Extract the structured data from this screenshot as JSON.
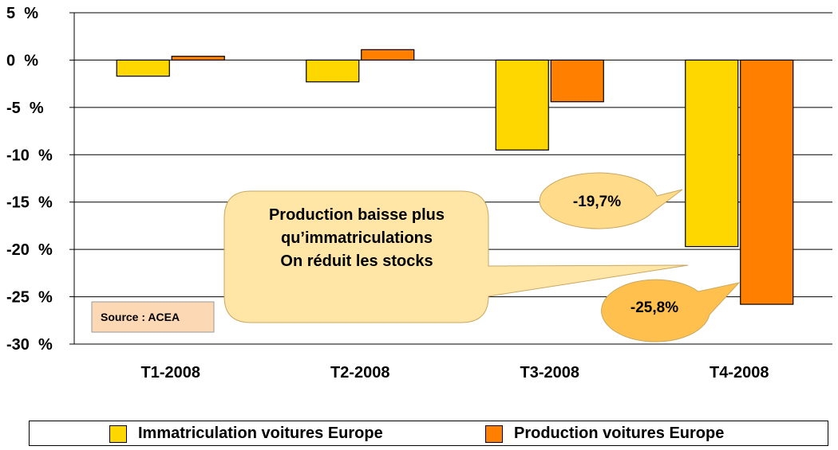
{
  "chart_data": {
    "type": "bar",
    "categories": [
      "T1-2008",
      "T2-2008",
      "T3-2008",
      "T4-2008"
    ],
    "series": [
      {
        "name": "Immatriculation voitures Europe",
        "color": "#FFD700",
        "values": [
          -1.7,
          -2.3,
          -9.5,
          -19.7
        ]
      },
      {
        "name": "Production voitures Europe",
        "color": "#FF8000",
        "values": [
          0.4,
          1.1,
          -4.4,
          -25.8
        ]
      }
    ],
    "ylim": [
      -30,
      5
    ],
    "yticks": [
      5,
      0,
      -5,
      -10,
      -15,
      -20,
      -25,
      -30
    ],
    "ytick_labels": [
      "5  %",
      "0  %",
      "-5  %",
      "-10  %",
      "-15  %",
      "-20  %",
      "-25  %",
      "-30  %"
    ],
    "grid": true,
    "legend_position": "bottom",
    "annotations": {
      "note_lines": [
        "Production baisse plus",
        "qu’immatriculations",
        "On réduit les stocks"
      ],
      "callout_immat": "-19,7%",
      "callout_prod": "-25,8%",
      "source": "Source : ACEA"
    }
  },
  "colors": {
    "grid": "#000000",
    "note_fill": "#FFE6A6",
    "callout1_fill": "#FFDB8A",
    "callout2_fill": "#FFC04D",
    "source_fill": "#FCD9B4"
  }
}
